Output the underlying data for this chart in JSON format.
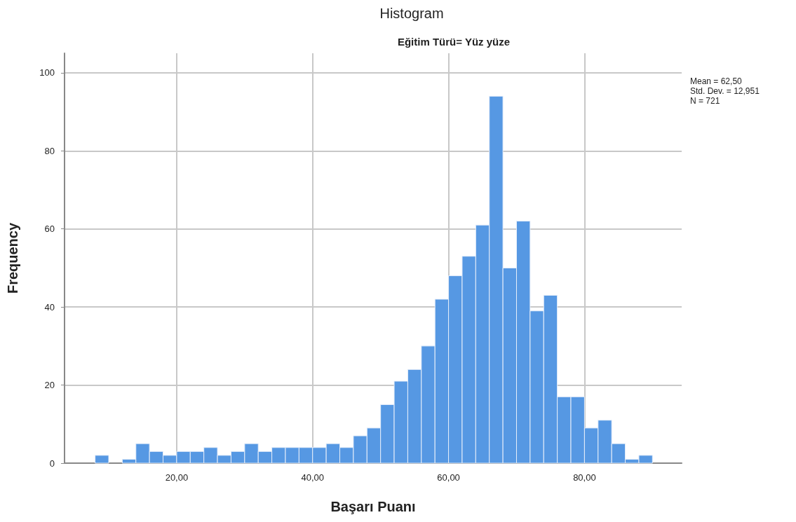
{
  "chart_data": {
    "type": "histogram",
    "title": "Histogram",
    "subtitle": "Eğitim Türü= Yüz yüze",
    "xlabel": "Başarı Puanı",
    "ylabel": "Frequency",
    "bins": [
      8,
      10,
      12,
      14,
      16,
      18,
      20,
      22,
      24,
      26,
      28,
      30,
      32,
      34,
      36,
      38,
      40,
      42,
      44,
      46,
      48,
      50,
      52,
      54,
      56,
      58,
      60,
      62,
      64,
      66,
      68,
      70,
      72,
      74,
      76,
      78,
      80,
      82,
      84,
      86,
      88,
      90
    ],
    "values": [
      2,
      0,
      1,
      5,
      3,
      2,
      3,
      3,
      4,
      2,
      3,
      5,
      3,
      4,
      4,
      4,
      4,
      5,
      4,
      7,
      9,
      15,
      21,
      24,
      30,
      42,
      48,
      53,
      61,
      94,
      50,
      62,
      39,
      43,
      17,
      17,
      9,
      11,
      5,
      1,
      2
    ],
    "color": "#5698e3",
    "xlim": [
      3.5,
      94.3
    ],
    "xticks": [
      {
        "value": 20,
        "label": "20,00"
      },
      {
        "value": 40,
        "label": "40,00"
      },
      {
        "value": 60,
        "label": "60,00"
      },
      {
        "value": 80,
        "label": "80,00"
      }
    ],
    "ylim": [
      0,
      105
    ],
    "yticks": [
      0,
      20,
      40,
      60,
      80,
      100
    ],
    "grid": true,
    "annotations": [
      "Mean = 62,50",
      "Std. Dev. = 12,951",
      "N = 721"
    ]
  }
}
